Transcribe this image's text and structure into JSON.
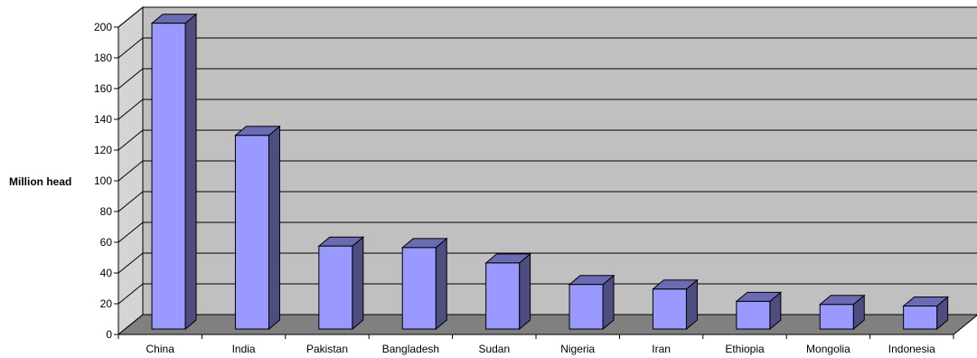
{
  "chart_data": {
    "type": "bar",
    "title": "",
    "xlabel": "",
    "ylabel": "Million head",
    "ylim": [
      0,
      200
    ],
    "yticks": [
      0,
      20,
      40,
      60,
      80,
      100,
      120,
      140,
      160,
      180,
      200
    ],
    "grid": true,
    "three_d": true,
    "categories": [
      "China",
      "India",
      "Pakistan",
      "Bangladesh",
      "Sudan",
      "Nigeria",
      "Iran",
      "Ethiopia",
      "Mongolia",
      "Indonesia"
    ],
    "values": [
      199,
      126,
      54,
      53,
      43,
      29,
      26,
      18,
      16,
      15
    ],
    "colors": {
      "bar_front": "#9999ff",
      "bar_side": "#4d4d80",
      "bar_top": "#6b6bb3",
      "wall": "#c0c0c0",
      "side_wall": "#d4d4d4",
      "floor": "#808080",
      "gridline": "#000000"
    }
  }
}
